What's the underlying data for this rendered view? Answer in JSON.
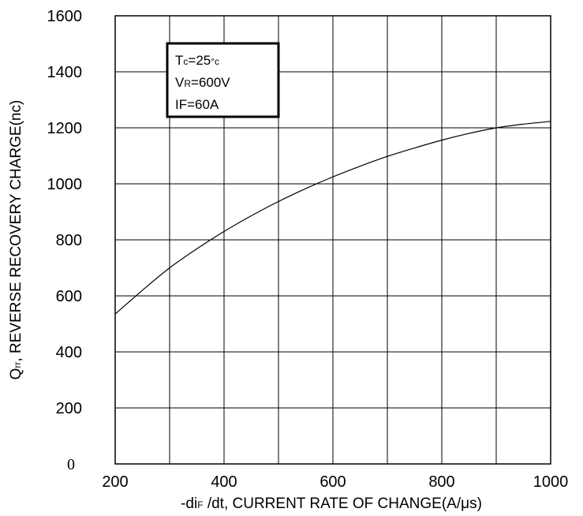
{
  "chart_data": {
    "type": "line",
    "title": "",
    "xlabel": {
      "prefix": "-di",
      "sub": "F",
      "suffix": " /dt, CURRENT RATE OF CHANGE(A/μs)"
    },
    "ylabel": {
      "prefix": "Q",
      "sub": "rr",
      "suffix": ", REVERSE RECOVERY CHARGE(nc)"
    },
    "xlim": [
      200,
      1000
    ],
    "ylim": [
      0,
      1600
    ],
    "x_ticks": [
      "200",
      "400",
      "600",
      "800",
      "1000"
    ],
    "y_ticks": [
      "0",
      "200",
      "400",
      "600",
      "800",
      "1000",
      "1200",
      "1400",
      "1600"
    ],
    "grid": true,
    "series": [
      {
        "x": [
          200,
          250,
          300,
          350,
          400,
          450,
          500,
          550,
          600,
          650,
          700,
          750,
          800,
          850,
          900,
          950,
          1000
        ],
        "y": [
          535,
          620,
          700,
          768,
          830,
          886,
          937,
          983,
          1025,
          1063,
          1098,
          1128,
          1156,
          1180,
          1200,
          1213,
          1223
        ]
      }
    ],
    "annotation": {
      "lines": [
        {
          "main": "T",
          "sub": "c",
          "rest": "=25",
          "unit_sub": "°c"
        },
        {
          "main": "V",
          "sub": "R",
          "rest": "=600V",
          "unit_sub": ""
        },
        {
          "main": "IF",
          "sub": "",
          "rest": "=60A",
          "unit_sub": ""
        }
      ]
    }
  }
}
